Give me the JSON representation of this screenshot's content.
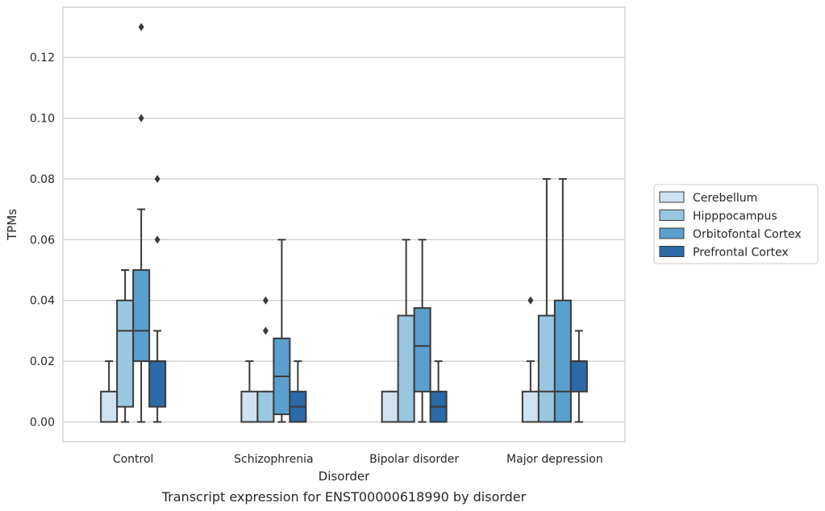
{
  "chart_data": {
    "type": "box",
    "title": "Transcript expression for ENST00000618990 by disorder",
    "xlabel": "Disorder",
    "ylabel": "TPMs",
    "categories": [
      "Control",
      "Schizophrenia",
      "Bipolar disorder",
      "Major depression"
    ],
    "ylim": [
      -0.0065,
      0.1365
    ],
    "yticks": [
      0.0,
      0.02,
      0.04,
      0.06,
      0.08,
      0.1,
      0.12
    ],
    "ytick_labels": [
      "0.00",
      "0.02",
      "0.04",
      "0.06",
      "0.08",
      "0.10",
      "0.12"
    ],
    "grid": "horizontal",
    "legend_position": "right",
    "series": [
      {
        "name": "Cerebellum",
        "color": "#d0e1f2",
        "boxes": [
          {
            "whislo": 0.0,
            "q1": 0.0,
            "med": 0.0,
            "q3": 0.01,
            "whishi": 0.02,
            "fliers": []
          },
          {
            "whislo": 0.0,
            "q1": 0.0,
            "med": 0.0,
            "q3": 0.01,
            "whishi": 0.02,
            "fliers": []
          },
          {
            "whislo": 0.0,
            "q1": 0.0,
            "med": 0.0,
            "q3": 0.01,
            "whishi": 0.01,
            "fliers": []
          },
          {
            "whislo": 0.0,
            "q1": 0.0,
            "med": 0.0,
            "q3": 0.01,
            "whishi": 0.02,
            "fliers": [
              0.04
            ]
          }
        ]
      },
      {
        "name": "Hipppocampus",
        "color": "#9ac7e0",
        "boxes": [
          {
            "whislo": 0.0,
            "q1": 0.005,
            "med": 0.03,
            "q3": 0.04,
            "whishi": 0.05,
            "fliers": []
          },
          {
            "whislo": 0.0,
            "q1": 0.0,
            "med": 0.0,
            "q3": 0.01,
            "whishi": 0.01,
            "fliers": [
              0.03,
              0.04
            ]
          },
          {
            "whislo": 0.0,
            "q1": 0.0,
            "med": 0.0,
            "q3": 0.035,
            "whishi": 0.06,
            "fliers": []
          },
          {
            "whislo": 0.0,
            "q1": 0.0,
            "med": 0.01,
            "q3": 0.035,
            "whishi": 0.08,
            "fliers": []
          }
        ]
      },
      {
        "name": "Orbitofontal Cortex",
        "color": "#5a9fce",
        "boxes": [
          {
            "whislo": 0.0,
            "q1": 0.02,
            "med": 0.03,
            "q3": 0.05,
            "whishi": 0.07,
            "fliers": [
              0.1,
              0.13
            ]
          },
          {
            "whislo": 0.0,
            "q1": 0.0025,
            "med": 0.015,
            "q3": 0.0275,
            "whishi": 0.06,
            "fliers": []
          },
          {
            "whislo": 0.0,
            "q1": 0.01,
            "med": 0.025,
            "q3": 0.0375,
            "whishi": 0.06,
            "fliers": []
          },
          {
            "whislo": 0.0,
            "q1": 0.0,
            "med": 0.01,
            "q3": 0.04,
            "whishi": 0.08,
            "fliers": []
          }
        ]
      },
      {
        "name": "Prefrontal Cortex",
        "color": "#2b6aa7",
        "boxes": [
          {
            "whislo": 0.0,
            "q1": 0.005,
            "med": 0.02,
            "q3": 0.02,
            "whishi": 0.03,
            "fliers": [
              0.06,
              0.08
            ]
          },
          {
            "whislo": 0.0,
            "q1": 0.0,
            "med": 0.005,
            "q3": 0.01,
            "whishi": 0.02,
            "fliers": []
          },
          {
            "whislo": 0.0,
            "q1": 0.0,
            "med": 0.005,
            "q3": 0.01,
            "whishi": 0.02,
            "fliers": []
          },
          {
            "whislo": 0.0,
            "q1": 0.01,
            "med": 0.02,
            "q3": 0.02,
            "whishi": 0.03,
            "fliers": []
          }
        ]
      }
    ]
  }
}
